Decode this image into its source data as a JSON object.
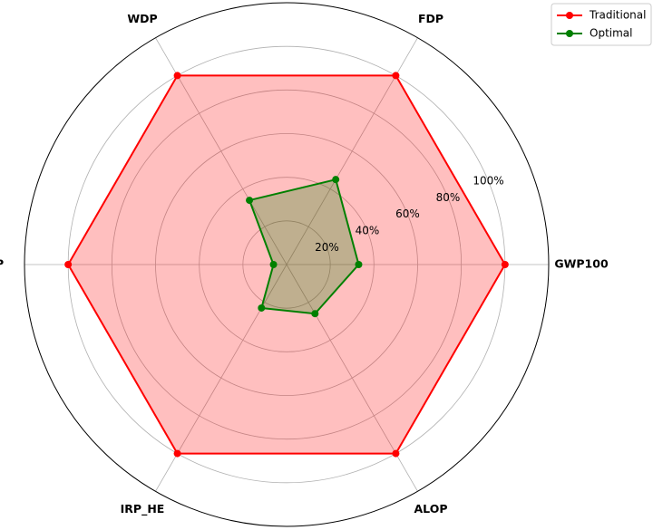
{
  "chart_data": {
    "type": "radar",
    "categories": [
      "GWP100",
      "FDP",
      "WDP",
      "FEP",
      "IRP_HE",
      "ALOP"
    ],
    "series": [
      {
        "name": "Traditional",
        "color": "#ff0000",
        "values": [
          100,
          100,
          100,
          100,
          100,
          100
        ]
      },
      {
        "name": "Optimal",
        "color": "#008000",
        "values": [
          33,
          45,
          34,
          6,
          23,
          26
        ]
      }
    ],
    "ylim": [
      0,
      120
    ],
    "yticks": [
      {
        "value": 20,
        "label": "20%"
      },
      {
        "value": 40,
        "label": "40%"
      },
      {
        "value": 60,
        "label": "60%"
      },
      {
        "value": 80,
        "label": "80%"
      },
      {
        "value": 100,
        "label": "100%"
      }
    ],
    "grid": true,
    "legend": "upper right"
  }
}
